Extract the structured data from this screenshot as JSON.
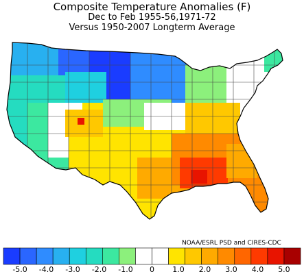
{
  "header": {
    "title": "Composite Temperature Anomalies (F)",
    "subtitle1": "Dec to Feb  1955-56,1971-72",
    "subtitle2": "Versus 1950-2007 Longterm Average"
  },
  "credit": "NOAA/ESRL PSD and CIRES-CDC",
  "legend": {
    "bins": [
      {
        "color": "#1a3cff"
      },
      {
        "color": "#2a66ff"
      },
      {
        "color": "#2f8cff"
      },
      {
        "color": "#28b0f0"
      },
      {
        "color": "#1fd0e0"
      },
      {
        "color": "#25dcc0"
      },
      {
        "color": "#3ce8a0"
      },
      {
        "color": "#8cf07c"
      },
      {
        "color": "#ffffff"
      },
      {
        "color": "#ffffff"
      },
      {
        "color": "#ffe400"
      },
      {
        "color": "#ffc800"
      },
      {
        "color": "#ffaa00"
      },
      {
        "color": "#ff8a00"
      },
      {
        "color": "#ff6600"
      },
      {
        "color": "#ff3a00"
      },
      {
        "color": "#e81400"
      },
      {
        "color": "#a80000"
      }
    ],
    "labels": [
      "-5.0",
      "-4.0",
      "-3.0",
      "-2.0",
      "-1.0",
      "0",
      "1.0",
      "2.0",
      "3.0",
      "4.0",
      "5.0"
    ]
  },
  "map_regions": [
    {
      "name": "northern-plains-core",
      "anomaly_bin": "-5 to -4"
    },
    {
      "name": "upper-midwest",
      "anomaly_bin": "-4 to -3"
    },
    {
      "name": "pacific-northwest",
      "anomaly_bin": "-3 to -2"
    },
    {
      "name": "great-basin",
      "anomaly_bin": "-1 to 0"
    },
    {
      "name": "southern-plains",
      "anomaly_bin": "1 to 2"
    },
    {
      "name": "gulf-coast",
      "anomaly_bin": "3 to 4"
    },
    {
      "name": "florida",
      "anomaly_bin": "2 to 3"
    }
  ]
}
